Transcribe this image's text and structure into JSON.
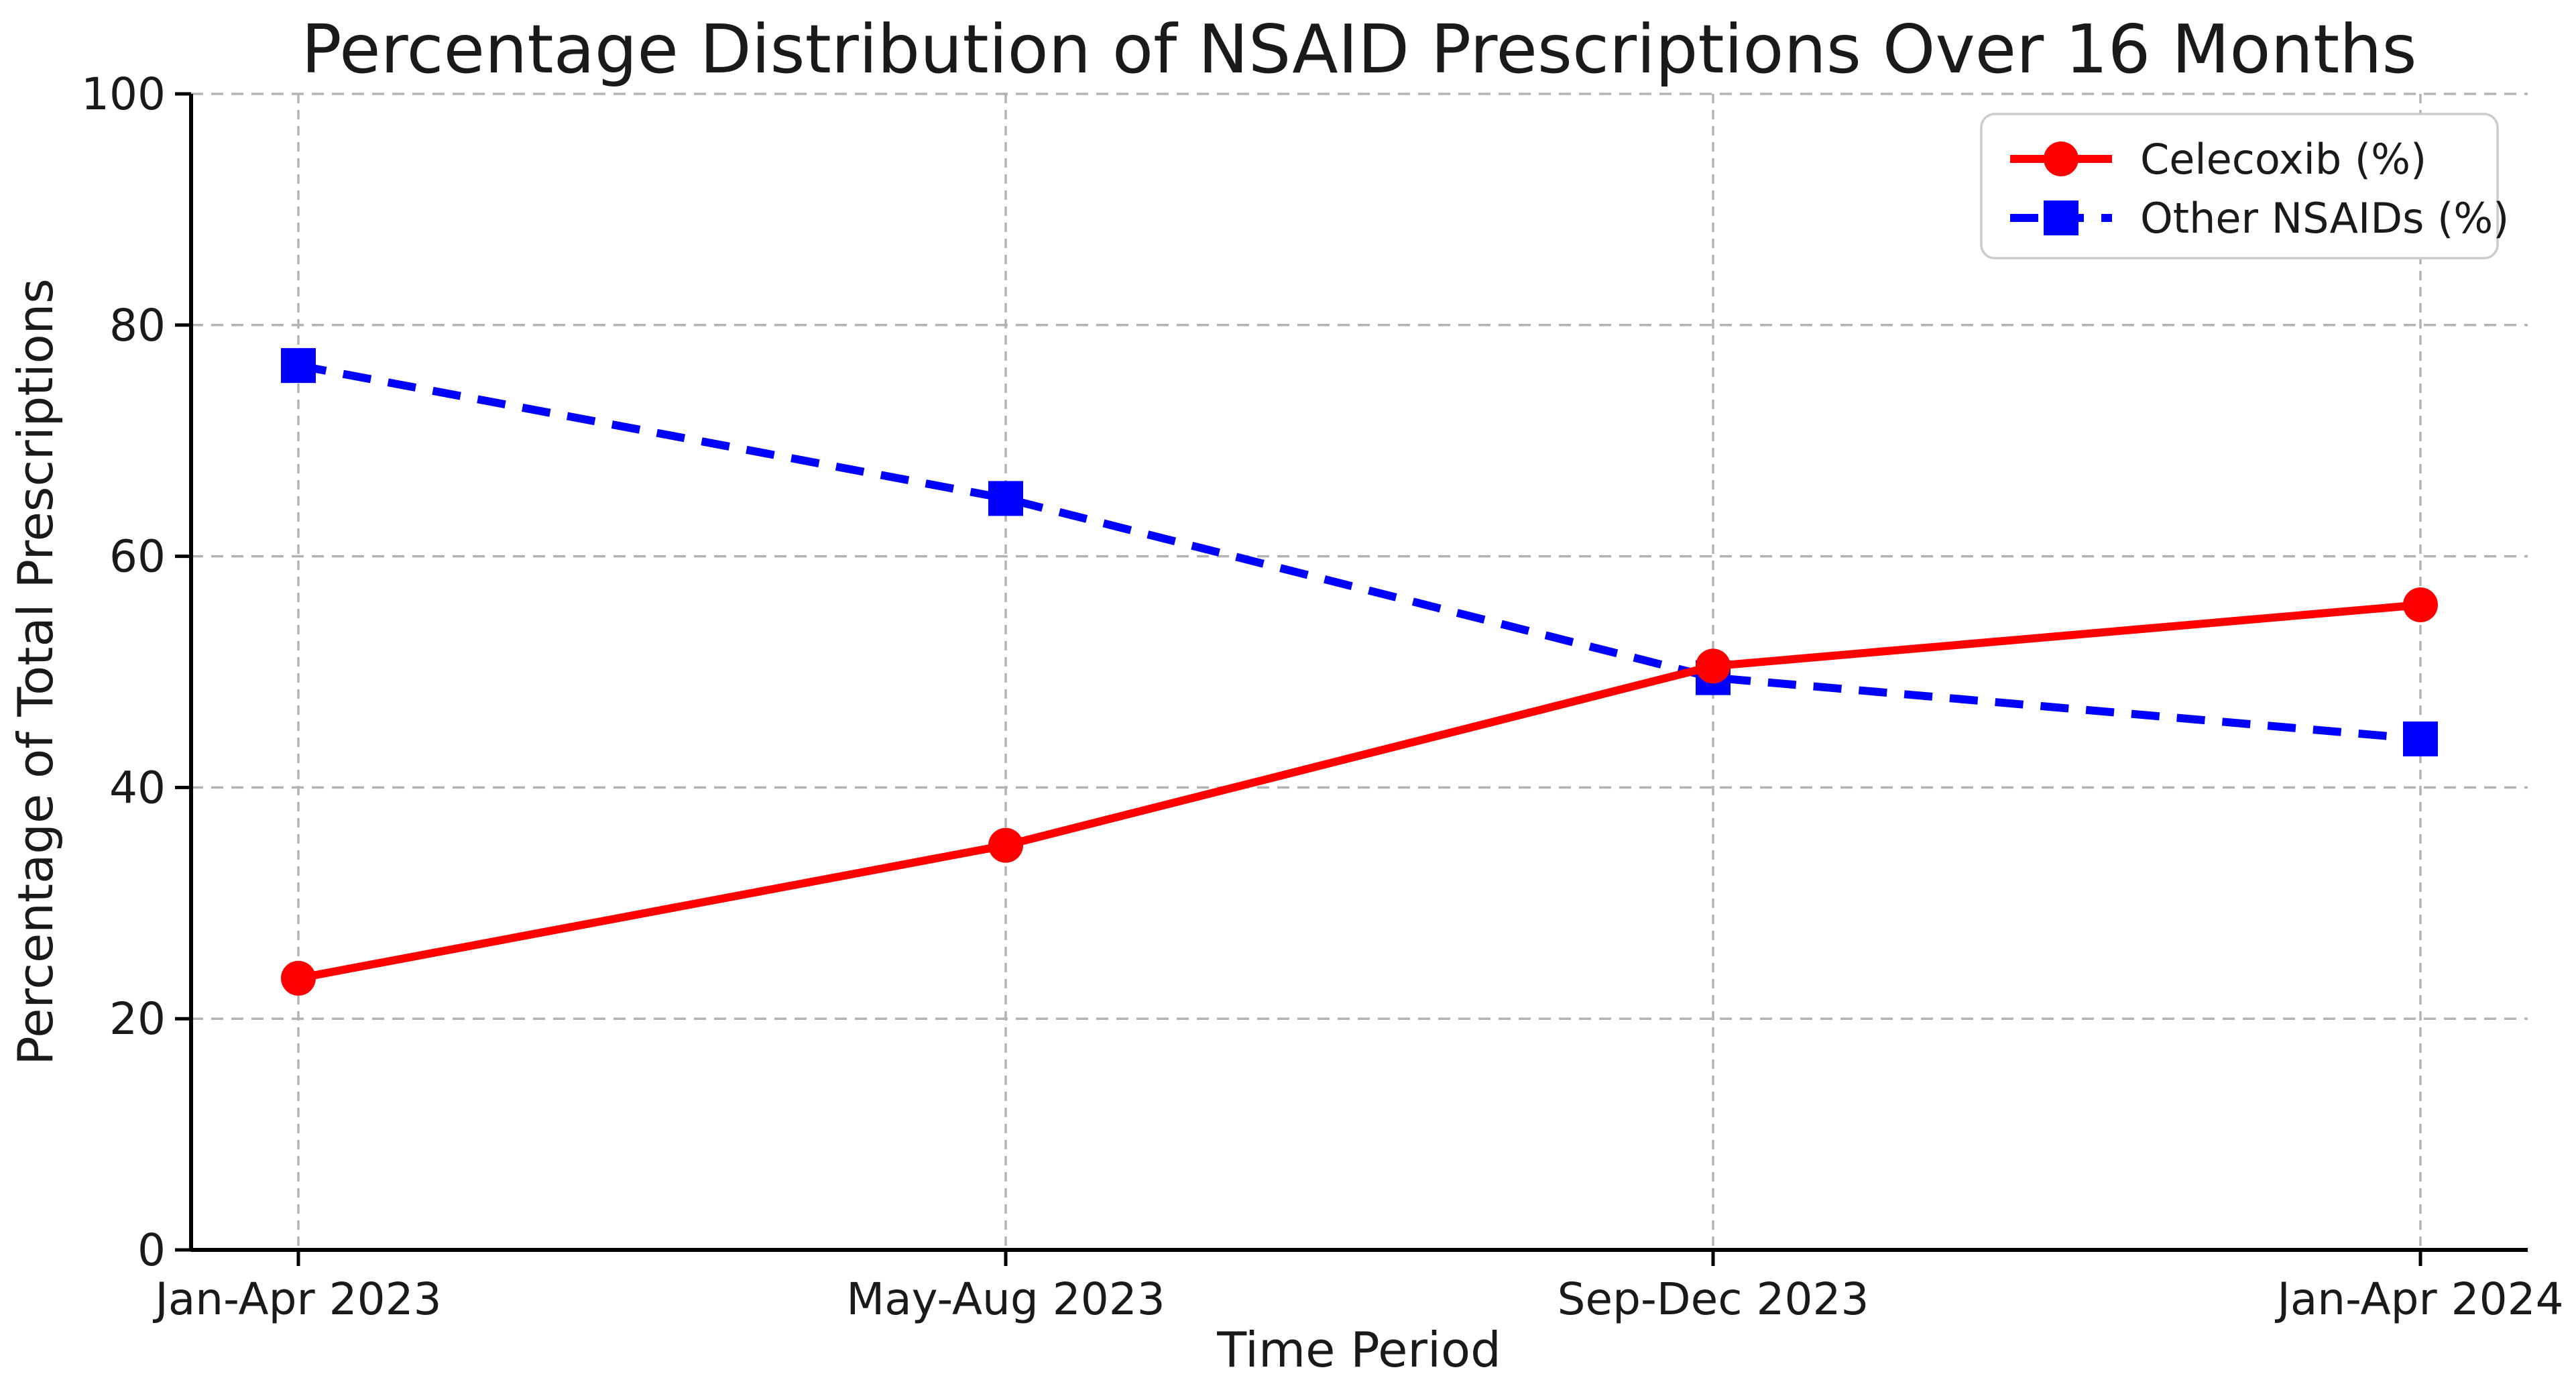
{
  "chart_data": {
    "type": "line",
    "title": "Percentage Distribution of NSAID Prescriptions Over 16 Months",
    "xlabel": "Time Period",
    "ylabel": "Percentage of Total Prescriptions",
    "categories": [
      "Jan-Apr 2023",
      "May-Aug 2023",
      "Sep-Dec 2023",
      "Jan-Apr 2024"
    ],
    "series": [
      {
        "name": "Celecoxib (%)",
        "color": "#ff0000",
        "marker": "circle",
        "line_style": "solid",
        "values": [
          23.5,
          35.0,
          50.5,
          55.8
        ]
      },
      {
        "name": "Other NSAIDs (%)",
        "color": "#0000ff",
        "marker": "square",
        "line_style": "dashed",
        "values": [
          76.5,
          65.0,
          49.5,
          44.2
        ]
      }
    ],
    "ylim": [
      0,
      100
    ],
    "yticks": [
      0,
      20,
      40,
      60,
      80,
      100
    ],
    "grid": true,
    "legend_position": "upper right",
    "grid_color": "#b3b3b3",
    "axis_color": "#000000",
    "background_color": "#ffffff"
  }
}
